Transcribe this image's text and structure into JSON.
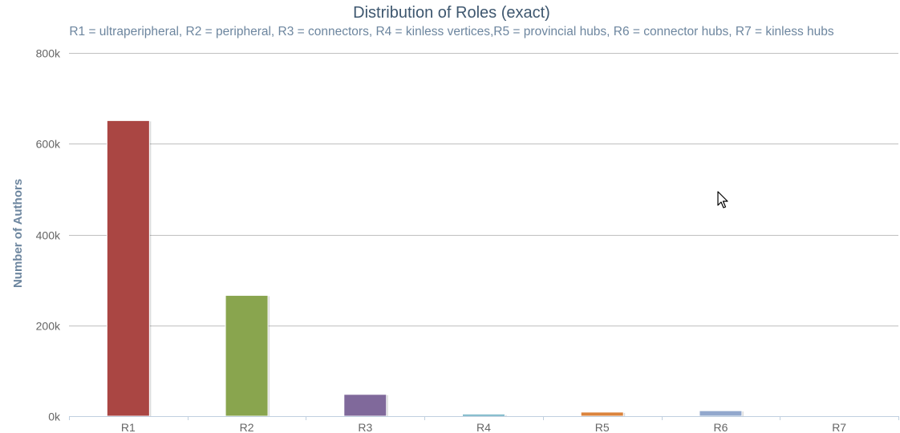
{
  "chart_data": {
    "type": "bar",
    "title": "Distribution of Roles (exact)",
    "subtitle": "R1 = ultraperipheral, R2 = peripheral, R3 = connectors, R4 = kinless vertices,R5 = provincial hubs, R6 = connector hubs, R7 = kinless hubs",
    "xlabel": "",
    "ylabel": "Number of Authors",
    "categories": [
      "R1",
      "R2",
      "R3",
      "R4",
      "R5",
      "R6",
      "R7"
    ],
    "values": [
      651000,
      266000,
      48000,
      4000,
      9000,
      12000,
      500
    ],
    "colors": [
      "#AA4643",
      "#89A54E",
      "#80699B",
      "#3D96AE",
      "#DB843D",
      "#92A8CD",
      "#A47D7C"
    ],
    "ylim": [
      0,
      800000
    ],
    "yticks": [
      0,
      200000,
      400000,
      600000,
      800000
    ],
    "ytick_labels": [
      "0k",
      "200k",
      "400k",
      "600k",
      "800k"
    ],
    "grid": true,
    "legend": "none"
  },
  "colors": {
    "title": "#3E576F",
    "subtitle": "#6D869F",
    "axis_label": "#6D869F",
    "tick_label": "#666666",
    "grid": "#C0C0C0",
    "axis_line": "#C0D0E0"
  }
}
